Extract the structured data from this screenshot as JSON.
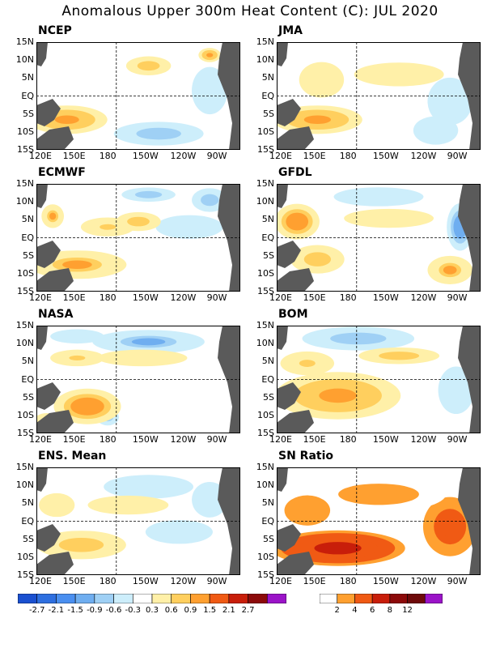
{
  "title": "Anomalous Upper 300m Heat Content (C): JUL 2020",
  "chart_data": {
    "type": "heatmap",
    "lon_ticks": [
      "120E",
      "150E",
      "180",
      "150W",
      "120W",
      "90W"
    ],
    "lat_ticks": [
      "15N",
      "10N",
      "5N",
      "EQ",
      "5S",
      "10S",
      "15S"
    ],
    "panels": [
      {
        "label": "NCEP",
        "warm": [
          [
            0.15,
            0.72,
            0.18,
            0.12,
            1.3
          ],
          [
            0.55,
            0.22,
            0.1,
            0.08,
            1.0
          ],
          [
            0.85,
            0.12,
            0.05,
            0.06,
            1.4
          ]
        ],
        "cold": [
          [
            0.6,
            0.85,
            0.2,
            0.1,
            -0.9
          ],
          [
            0.85,
            0.45,
            0.08,
            0.2,
            -0.4
          ]
        ]
      },
      {
        "label": "JMA",
        "warm": [
          [
            0.2,
            0.72,
            0.2,
            0.12,
            1.3
          ],
          [
            0.6,
            0.3,
            0.2,
            0.1,
            0.6
          ],
          [
            0.22,
            0.35,
            0.1,
            0.15,
            0.5
          ]
        ],
        "cold": [
          [
            0.78,
            0.82,
            0.1,
            0.12,
            -0.6
          ],
          [
            0.85,
            0.55,
            0.1,
            0.2,
            -0.4
          ]
        ]
      },
      {
        "label": "ECMWF",
        "warm": [
          [
            0.2,
            0.75,
            0.22,
            0.12,
            1.2
          ],
          [
            0.35,
            0.4,
            0.12,
            0.08,
            0.8
          ],
          [
            0.5,
            0.35,
            0.1,
            0.08,
            0.9
          ],
          [
            0.08,
            0.3,
            0.05,
            0.1,
            1.2
          ]
        ],
        "cold": [
          [
            0.55,
            0.1,
            0.12,
            0.06,
            -0.9
          ],
          [
            0.85,
            0.15,
            0.08,
            0.1,
            -0.9
          ],
          [
            0.75,
            0.4,
            0.15,
            0.1,
            -0.5
          ]
        ]
      },
      {
        "label": "GFDL",
        "warm": [
          [
            0.1,
            0.35,
            0.1,
            0.15,
            2.0
          ],
          [
            0.2,
            0.7,
            0.12,
            0.12,
            0.9
          ],
          [
            0.55,
            0.32,
            0.2,
            0.08,
            0.5
          ],
          [
            0.85,
            0.8,
            0.1,
            0.12,
            1.2
          ]
        ],
        "cold": [
          [
            0.9,
            0.4,
            0.06,
            0.2,
            -1.5
          ],
          [
            0.5,
            0.12,
            0.2,
            0.08,
            -0.5
          ]
        ]
      },
      {
        "label": "NASA",
        "warm": [
          [
            0.25,
            0.75,
            0.15,
            0.15,
            1.8
          ],
          [
            0.2,
            0.3,
            0.12,
            0.07,
            0.8
          ],
          [
            0.52,
            0.3,
            0.2,
            0.07,
            0.6
          ],
          [
            0.05,
            0.9,
            0.06,
            0.08,
            1.0
          ]
        ],
        "cold": [
          [
            0.55,
            0.15,
            0.25,
            0.1,
            -1.2
          ],
          [
            0.2,
            0.1,
            0.12,
            0.06,
            -0.7
          ],
          [
            0.35,
            0.85,
            0.05,
            0.07,
            -0.9
          ]
        ]
      },
      {
        "label": "BOM",
        "warm": [
          [
            0.3,
            0.65,
            0.28,
            0.2,
            1.4
          ],
          [
            0.6,
            0.28,
            0.18,
            0.07,
            0.9
          ],
          [
            0.15,
            0.35,
            0.12,
            0.1,
            0.8
          ]
        ],
        "cold": [
          [
            0.4,
            0.12,
            0.25,
            0.1,
            -0.9
          ],
          [
            0.88,
            0.6,
            0.08,
            0.2,
            -0.4
          ]
        ]
      },
      {
        "label": "ENS. Mean",
        "warm": [
          [
            0.22,
            0.72,
            0.2,
            0.12,
            1.1
          ],
          [
            0.45,
            0.35,
            0.18,
            0.08,
            0.5
          ],
          [
            0.1,
            0.35,
            0.08,
            0.1,
            0.6
          ]
        ],
        "cold": [
          [
            0.55,
            0.18,
            0.2,
            0.1,
            -0.6
          ],
          [
            0.85,
            0.3,
            0.08,
            0.15,
            -0.4
          ],
          [
            0.7,
            0.6,
            0.15,
            0.1,
            -0.3
          ]
        ]
      },
      {
        "label": "SN Ratio",
        "warm": [
          [
            0.3,
            0.75,
            0.3,
            0.15,
            9
          ],
          [
            0.85,
            0.55,
            0.12,
            0.25,
            7
          ],
          [
            0.5,
            0.25,
            0.3,
            0.15,
            4
          ],
          [
            0.15,
            0.4,
            0.12,
            0.15,
            5
          ]
        ],
        "cold": []
      }
    ],
    "anomaly_colorbar": {
      "colors": [
        "#1a50d0",
        "#2e6fe0",
        "#4a8ff0",
        "#6faef0",
        "#9fd0f5",
        "#cdeefb",
        "#ffffff",
        "#fff0a8",
        "#ffcf5e",
        "#ffa030",
        "#f05a14",
        "#c81e0a",
        "#8c0a0a",
        "#9b14c8"
      ],
      "labels": [
        "-2.7",
        "-2.1",
        "-1.5",
        "-0.9",
        "-0.6",
        "-0.3",
        "0.3",
        "0.6",
        "0.9",
        "1.5",
        "2.1",
        "2.7"
      ]
    },
    "sn_colorbar": {
      "colors": [
        "#ffffff",
        "#ffa030",
        "#f05a14",
        "#c81e0a",
        "#8c0a0a",
        "#6e0a0a",
        "#9b14c8"
      ],
      "labels": [
        "2",
        "4",
        "6",
        "8",
        "12"
      ]
    }
  }
}
